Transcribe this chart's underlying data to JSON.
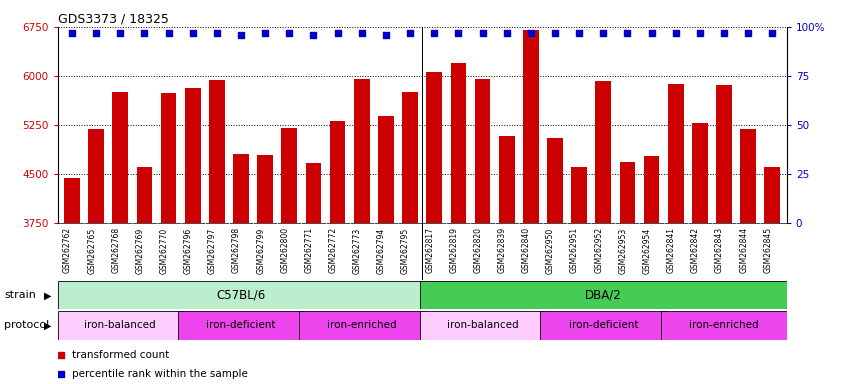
{
  "title": "GDS3373 / 18325",
  "samples": [
    "GSM262762",
    "GSM262765",
    "GSM262768",
    "GSM262769",
    "GSM262770",
    "GSM262796",
    "GSM262797",
    "GSM262798",
    "GSM262799",
    "GSM262800",
    "GSM262771",
    "GSM262772",
    "GSM262773",
    "GSM262794",
    "GSM262795",
    "GSM262817",
    "GSM262819",
    "GSM262820",
    "GSM262839",
    "GSM262840",
    "GSM262950",
    "GSM262951",
    "GSM262952",
    "GSM262953",
    "GSM262954",
    "GSM262841",
    "GSM262842",
    "GSM262843",
    "GSM262844",
    "GSM262845"
  ],
  "bar_values": [
    4430,
    5190,
    5760,
    4600,
    5740,
    5810,
    5930,
    4800,
    4780,
    5200,
    4660,
    5310,
    5950,
    5380,
    5750,
    6060,
    6200,
    5950,
    5080,
    6700,
    5050,
    4600,
    5920,
    4680,
    4770,
    5880,
    5270,
    5860,
    5180,
    4600
  ],
  "percentile_values": [
    97,
    97,
    97,
    97,
    97,
    97,
    97,
    96,
    97,
    97,
    96,
    97,
    97,
    96,
    97,
    97,
    97,
    97,
    97,
    97,
    97,
    97,
    97,
    97,
    97,
    97,
    97,
    97,
    97,
    97
  ],
  "bar_color": "#cc0000",
  "dot_color": "#0000cc",
  "ymin": 3750,
  "ymax": 6750,
  "yticks_left": [
    3750,
    4500,
    5250,
    6000,
    6750
  ],
  "yticks_right": [
    0,
    25,
    50,
    75,
    100
  ],
  "strain_groups": [
    {
      "label": "C57BL/6",
      "start": 0,
      "end": 15,
      "color": "#bbeecc"
    },
    {
      "label": "DBA/2",
      "start": 15,
      "end": 30,
      "color": "#44cc55"
    }
  ],
  "protocol_groups": [
    {
      "label": "iron-balanced",
      "start": 0,
      "end": 5,
      "color": "#ffccff"
    },
    {
      "label": "iron-deficient",
      "start": 5,
      "end": 10,
      "color": "#ee44ee"
    },
    {
      "label": "iron-enriched",
      "start": 10,
      "end": 15,
      "color": "#ee44ee"
    },
    {
      "label": "iron-balanced",
      "start": 15,
      "end": 20,
      "color": "#ffccff"
    },
    {
      "label": "iron-deficient",
      "start": 20,
      "end": 25,
      "color": "#ee44ee"
    },
    {
      "label": "iron-enriched",
      "start": 25,
      "end": 30,
      "color": "#ee44ee"
    }
  ],
  "xtick_bg_color": "#dddddd",
  "background_color": "#ffffff",
  "tick_color_left": "#cc0000",
  "tick_color_right": "#0000cc",
  "group_separator": 14.5,
  "n_samples": 30
}
